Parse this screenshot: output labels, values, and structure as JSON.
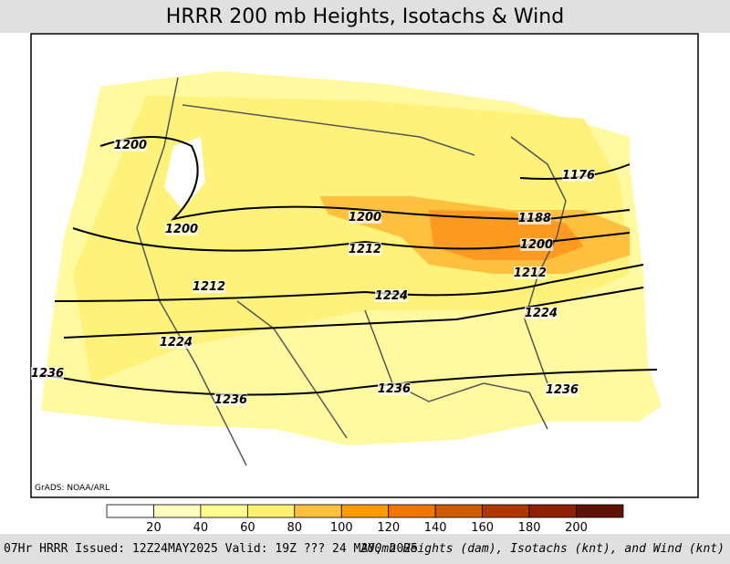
{
  "header": {
    "title": "HRRR 200 mb Heights, Isotachs & Wind"
  },
  "map": {
    "credit": "GrADS: NOAA/ARL",
    "contour_labels": [
      "1200",
      "1200",
      "1176",
      "1188",
      "1200",
      "1200",
      "1212",
      "1212",
      "1212",
      "1224",
      "1224",
      "1224",
      "1236",
      "1236",
      "1236",
      "1236"
    ]
  },
  "colorbar": {
    "labels": [
      "20",
      "40",
      "60",
      "80",
      "100",
      "120",
      "140",
      "160",
      "180",
      "200"
    ]
  },
  "footer": {
    "left": "07Hr HRRR Issued: 12Z24MAY2025 Valid: 19Z ??? 24 MAY, 2025",
    "right": "200mb Heights (dam), Isotachs (knt), and Wind (knt)"
  }
}
